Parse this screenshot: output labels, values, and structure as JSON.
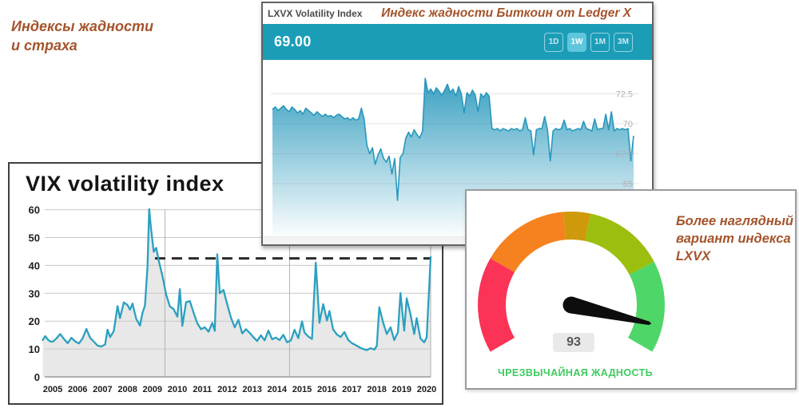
{
  "slide": {
    "title_line1": "Индексы жадности",
    "title_line2": "и страха"
  },
  "lxvx": {
    "header_title": "LXVX Volatility Index",
    "header_caption": "Индекс жадности Биткоин от Ledger X",
    "current_value": "69.00",
    "range_buttons": [
      {
        "label": "1D",
        "active": false
      },
      {
        "label": "1W",
        "active": true
      },
      {
        "label": "1M",
        "active": false
      },
      {
        "label": "3M",
        "active": false
      }
    ],
    "bar_color": "#1B9DB8",
    "active_button_color": "#5FC6DC"
  },
  "vix": {
    "title": "VIX volatility index"
  },
  "gauge": {
    "value_text": "93",
    "label": "ЧРЕЗВЫЧАЙНАЯ ЖАДНОСТЬ",
    "caption_lines": [
      "Более наглядный",
      "вариант индекса",
      "LXVX"
    ],
    "label_color": "#3ECB5E"
  },
  "chart_data": [
    {
      "id": "lxvx-area",
      "type": "area",
      "title": "LXVX Volatility Index",
      "current_value": 69.0,
      "line_color": "#2898BC",
      "grid_color": "#e4e4e4",
      "tick_color": "#b0b0b0",
      "y_ticks": [
        72.5,
        70,
        67.5,
        65
      ],
      "ylim": [
        63,
        74.8
      ],
      "values": [
        71.2,
        71.4,
        71.1,
        71.3,
        71.5,
        71.2,
        71.0,
        71.4,
        71.2,
        70.9,
        71.1,
        70.8,
        71.3,
        71.1,
        70.9,
        70.7,
        71.0,
        70.8,
        70.6,
        70.8,
        70.6,
        70.7,
        70.5,
        70.7,
        70.8,
        70.6,
        70.4,
        70.5,
        70.3,
        70.5,
        70.3,
        70.4,
        71.3,
        70.4,
        68.2,
        67.5,
        68.0,
        66.6,
        67.4,
        67.9,
        67.1,
        66.8,
        67.3,
        65.8,
        67.1,
        63.6,
        67.2,
        67.5,
        68.8,
        69.3,
        68.9,
        69.5,
        69.1,
        68.8,
        69.4,
        73.8,
        72.6,
        72.9,
        72.5,
        73.0,
        72.7,
        72.4,
        72.8,
        73.3,
        72.6,
        72.9,
        72.3,
        73.1,
        72.5,
        70.9,
        72.6,
        72.3,
        72.8,
        72.4,
        71.0,
        72.5,
        72.2,
        72.6,
        72.3,
        69.6,
        69.5,
        69.6,
        69.4,
        69.6,
        69.5,
        69.4,
        69.6,
        69.5,
        69.6,
        69.4,
        69.5,
        70.5,
        69.5,
        69.4,
        67.4,
        69.5,
        69.6,
        69.6,
        70.6,
        69.5,
        66.9,
        69.4,
        69.6,
        69.5,
        69.6,
        70.3,
        69.5,
        69.6,
        69.4,
        69.5,
        69.6,
        69.5,
        70.2,
        69.6,
        69.5,
        69.4,
        70.4,
        69.5,
        69.6,
        69.6,
        70.8,
        69.5,
        71.0,
        69.4,
        69.6,
        69.5,
        69.6,
        69.5,
        69.6,
        66.9,
        69.0
      ]
    },
    {
      "id": "vix-line",
      "type": "line",
      "title": "VIX volatility index",
      "line_color": "#2AA0C0",
      "fill_color": "#e8e8e8",
      "grid_color": "#c8c8c8",
      "dashed_level": 42.5,
      "dashed_start_year": 2009.1,
      "ylim": [
        0,
        62
      ],
      "y_ticks": [
        0,
        10,
        20,
        30,
        40,
        50,
        60
      ],
      "x_ticks": [
        2005,
        2006,
        2007,
        2008,
        2009,
        2010,
        2011,
        2012,
        2013,
        2014,
        2015,
        2016,
        2017,
        2018,
        2019,
        2020
      ],
      "vgrid_years": [
        2009.5,
        2014.5
      ],
      "points": [
        [
          2004.6,
          13.2
        ],
        [
          2004.7,
          14.6
        ],
        [
          2004.8,
          13.4
        ],
        [
          2004.9,
          12.7
        ],
        [
          2005.0,
          12.6
        ],
        [
          2005.15,
          13.8
        ],
        [
          2005.3,
          15.4
        ],
        [
          2005.45,
          13.6
        ],
        [
          2005.6,
          12.1
        ],
        [
          2005.75,
          14.0
        ],
        [
          2005.9,
          12.7
        ],
        [
          2006.05,
          12.0
        ],
        [
          2006.2,
          13.8
        ],
        [
          2006.35,
          17.2
        ],
        [
          2006.5,
          14.0
        ],
        [
          2006.65,
          12.6
        ],
        [
          2006.8,
          11.2
        ],
        [
          2006.95,
          10.9
        ],
        [
          2007.1,
          11.6
        ],
        [
          2007.2,
          16.9
        ],
        [
          2007.3,
          14.3
        ],
        [
          2007.45,
          16.4
        ],
        [
          2007.6,
          25.4
        ],
        [
          2007.7,
          21.1
        ],
        [
          2007.85,
          26.7
        ],
        [
          2008.0,
          25.8
        ],
        [
          2008.1,
          24.1
        ],
        [
          2008.2,
          26.3
        ],
        [
          2008.35,
          20.8
        ],
        [
          2008.5,
          18.4
        ],
        [
          2008.6,
          22.9
        ],
        [
          2008.7,
          25.6
        ],
        [
          2008.8,
          39.4
        ],
        [
          2008.87,
          60.2
        ],
        [
          2008.95,
          52.7
        ],
        [
          2009.05,
          44.9
        ],
        [
          2009.15,
          46.3
        ],
        [
          2009.25,
          41.8
        ],
        [
          2009.4,
          36.2
        ],
        [
          2009.55,
          29.5
        ],
        [
          2009.7,
          25.3
        ],
        [
          2009.85,
          24.3
        ],
        [
          2010.0,
          21.6
        ],
        [
          2010.1,
          31.5
        ],
        [
          2010.2,
          18.3
        ],
        [
          2010.35,
          26.8
        ],
        [
          2010.5,
          27.2
        ],
        [
          2010.65,
          23.0
        ],
        [
          2010.8,
          19.2
        ],
        [
          2010.95,
          17.1
        ],
        [
          2011.1,
          17.8
        ],
        [
          2011.25,
          16.2
        ],
        [
          2011.4,
          19.4
        ],
        [
          2011.5,
          16.5
        ],
        [
          2011.6,
          44.0
        ],
        [
          2011.7,
          30.0
        ],
        [
          2011.85,
          31.2
        ],
        [
          2012.0,
          26.0
        ],
        [
          2012.15,
          21.2
        ],
        [
          2012.3,
          17.8
        ],
        [
          2012.45,
          20.5
        ],
        [
          2012.6,
          15.6
        ],
        [
          2012.75,
          17.1
        ],
        [
          2012.9,
          15.8
        ],
        [
          2013.05,
          14.2
        ],
        [
          2013.2,
          12.9
        ],
        [
          2013.35,
          14.9
        ],
        [
          2013.5,
          13.1
        ],
        [
          2013.65,
          16.6
        ],
        [
          2013.8,
          13.5
        ],
        [
          2013.95,
          14.1
        ],
        [
          2014.1,
          13.2
        ],
        [
          2014.25,
          15.1
        ],
        [
          2014.4,
          12.4
        ],
        [
          2014.55,
          13.0
        ],
        [
          2014.7,
          16.9
        ],
        [
          2014.85,
          13.9
        ],
        [
          2015.0,
          19.9
        ],
        [
          2015.1,
          15.9
        ],
        [
          2015.25,
          14.5
        ],
        [
          2015.4,
          13.6
        ],
        [
          2015.55,
          41.0
        ],
        [
          2015.7,
          19.4
        ],
        [
          2015.85,
          26.1
        ],
        [
          2016.0,
          20.2
        ],
        [
          2016.1,
          23.6
        ],
        [
          2016.25,
          17.0
        ],
        [
          2016.4,
          15.2
        ],
        [
          2016.55,
          14.3
        ],
        [
          2016.7,
          16.1
        ],
        [
          2016.85,
          13.3
        ],
        [
          2017.0,
          12.1
        ],
        [
          2017.15,
          11.4
        ],
        [
          2017.3,
          10.6
        ],
        [
          2017.45,
          10.0
        ],
        [
          2017.6,
          9.6
        ],
        [
          2017.75,
          10.3
        ],
        [
          2017.9,
          9.8
        ],
        [
          2018.0,
          11.1
        ],
        [
          2018.1,
          25.0
        ],
        [
          2018.25,
          19.6
        ],
        [
          2018.4,
          15.4
        ],
        [
          2018.55,
          17.8
        ],
        [
          2018.7,
          13.2
        ],
        [
          2018.85,
          16.1
        ],
        [
          2018.95,
          30.1
        ],
        [
          2019.1,
          16.6
        ],
        [
          2019.2,
          28.2
        ],
        [
          2019.35,
          22.5
        ],
        [
          2019.5,
          15.4
        ],
        [
          2019.6,
          21.1
        ],
        [
          2019.75,
          13.8
        ],
        [
          2019.9,
          12.4
        ],
        [
          2020.0,
          14.1
        ],
        [
          2020.16,
          43.0
        ]
      ]
    },
    {
      "id": "greed-gauge",
      "type": "gauge",
      "value": 93,
      "min": 0,
      "max": 100,
      "start_angle": 210,
      "end_angle": -30,
      "segments": [
        {
          "from": 0,
          "to": 25,
          "color": "#FB3357"
        },
        {
          "from": 25,
          "to": 48,
          "color": "#F5821F"
        },
        {
          "from": 48,
          "to": 55,
          "color": "#CE9A0B"
        },
        {
          "from": 55,
          "to": 76,
          "color": "#9CBE0F"
        },
        {
          "from": 76,
          "to": 100,
          "color": "#4FD668"
        }
      ],
      "needle_color": "#0d0d0d",
      "status_label": "ЧРЕЗВЫЧАЙНАЯ ЖАДНОСТЬ"
    }
  ]
}
